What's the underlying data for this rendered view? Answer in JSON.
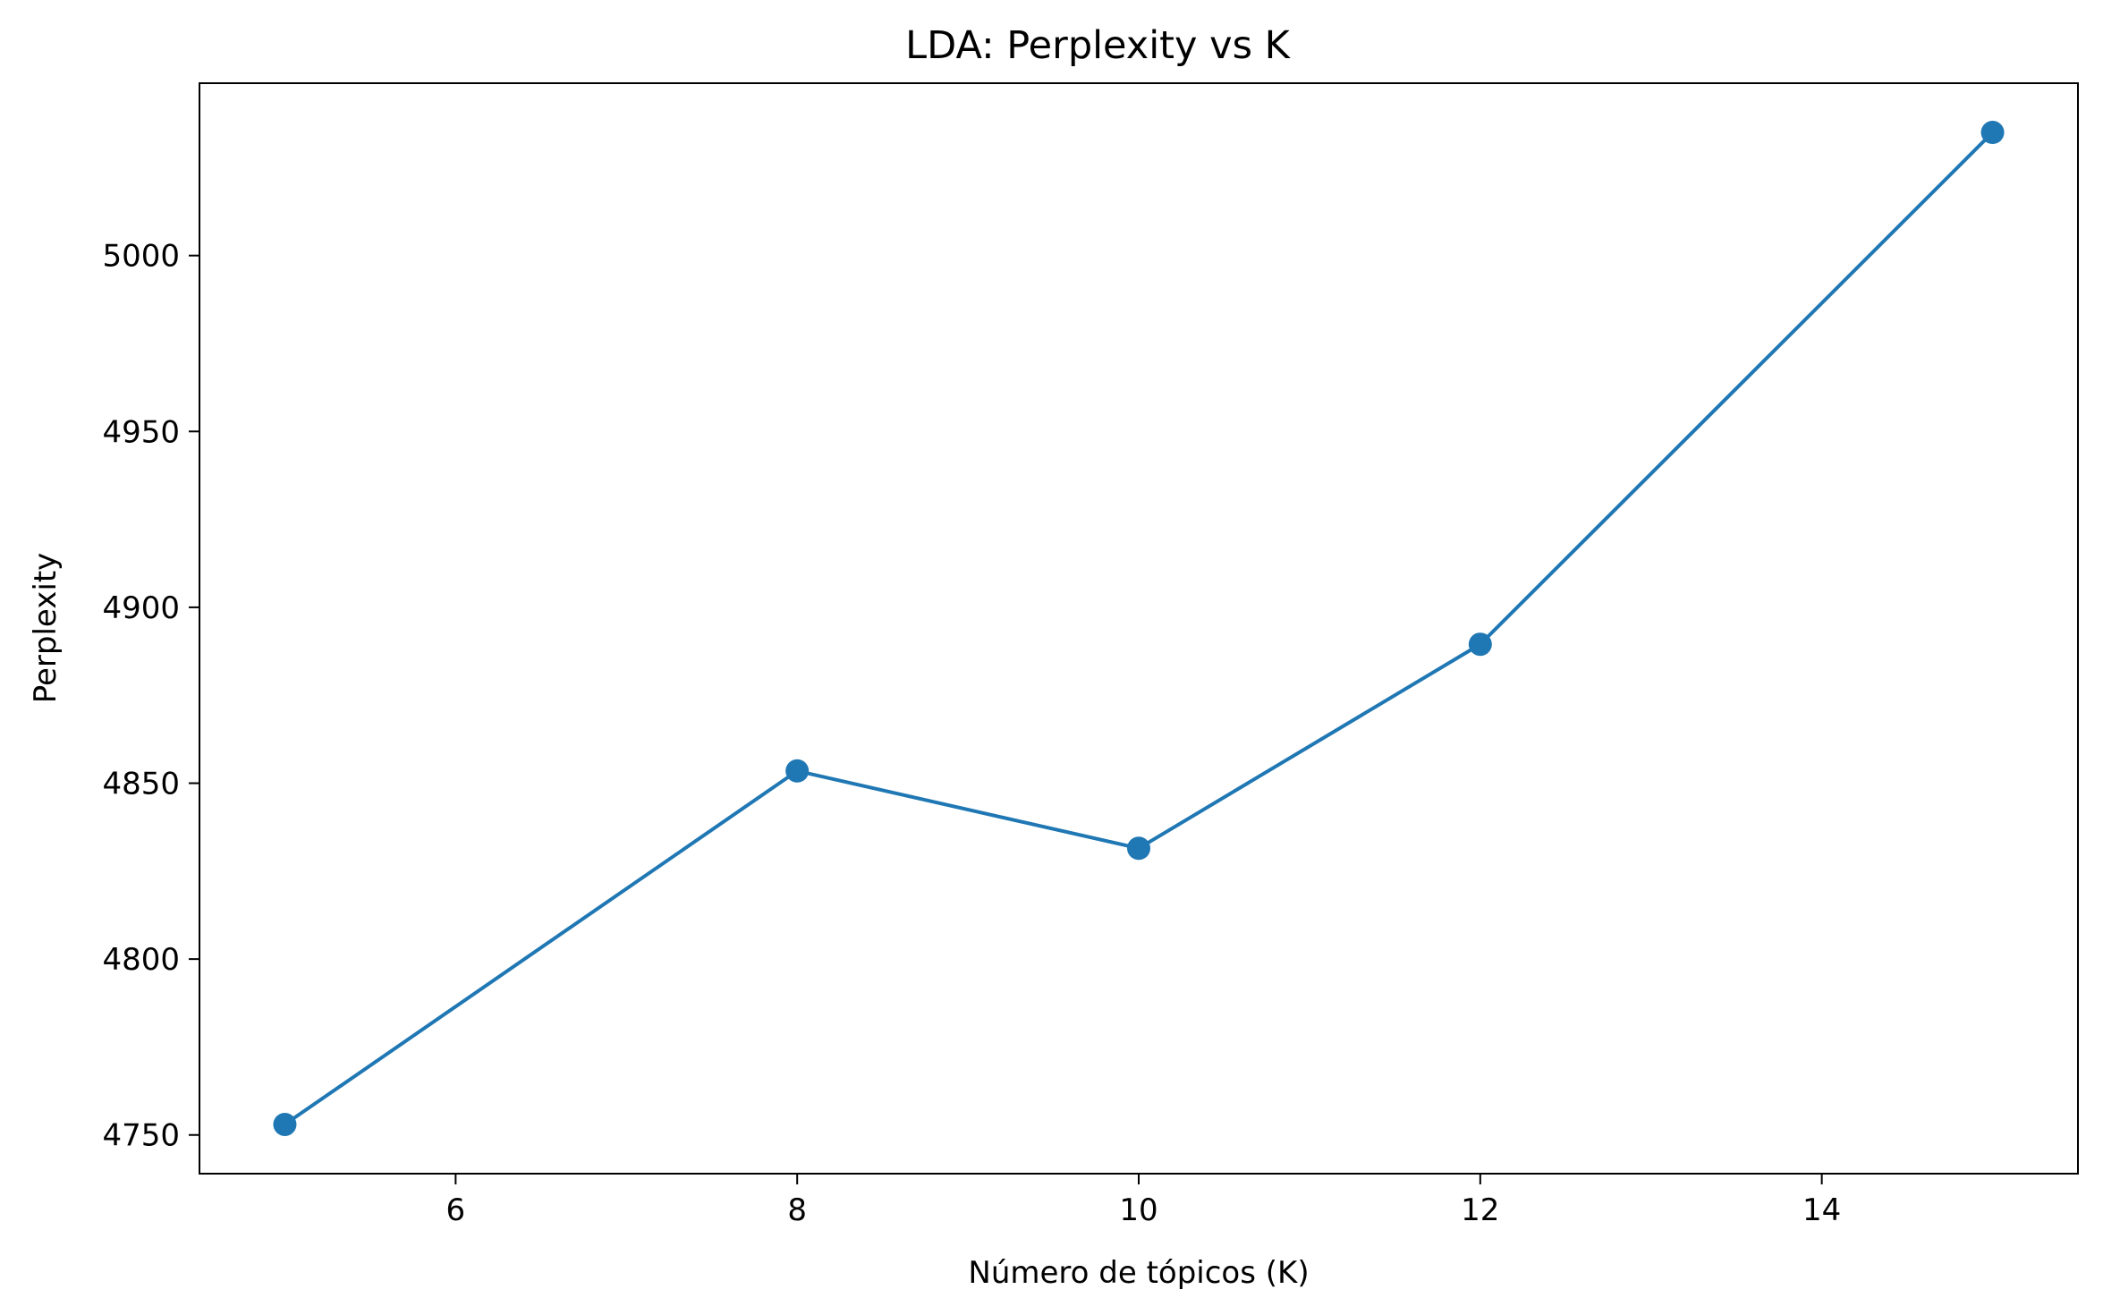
{
  "chart_data": {
    "type": "line",
    "title": "LDA: Perplexity vs K",
    "xlabel": "Número de tópicos (K)",
    "ylabel": "Perplexity",
    "xlim": [
      4.5,
      15.5
    ],
    "ylim": [
      4739,
      5049
    ],
    "xticks": [
      6,
      8,
      10,
      12,
      14
    ],
    "yticks": [
      4750,
      4800,
      4850,
      4900,
      4950,
      5000
    ],
    "grid": false,
    "legend": "none",
    "marker": "circle",
    "color": "#1f77b4",
    "series": [
      {
        "x": [
          5,
          8,
          10,
          12,
          15
        ],
        "y": [
          4753,
          4853.5,
          4831.5,
          4889.5,
          5035
        ]
      }
    ]
  }
}
